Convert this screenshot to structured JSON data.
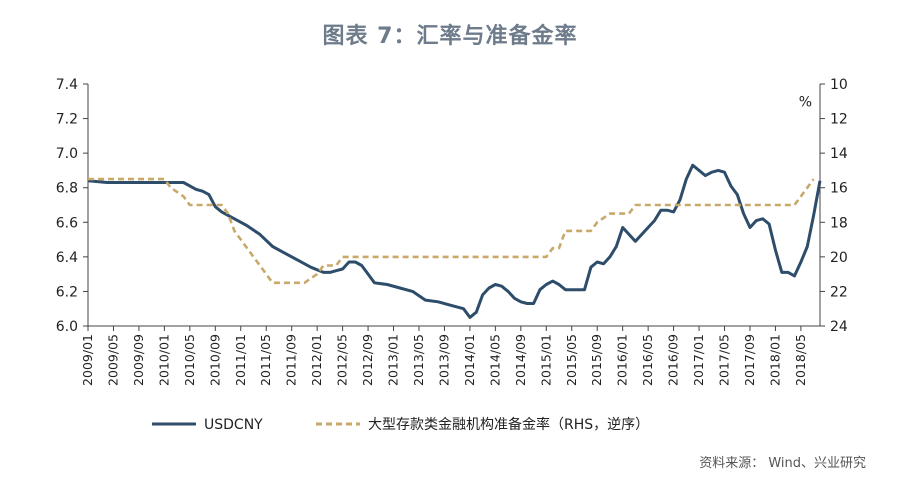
{
  "title": "图表 7：汇率与准备金率",
  "source": "资料来源： Wind、兴业研究",
  "colors": {
    "usdcny": "#2e4d6b",
    "rrr": "#c8a96a",
    "axis": "#444444",
    "text": "#222222"
  },
  "chart_data": {
    "type": "line",
    "xlabel": "",
    "ylabel": "",
    "ylim": [
      6.0,
      7.4
    ],
    "yticks": [
      "6.0",
      "6.2",
      "6.4",
      "6.6",
      "6.8",
      "7.0",
      "7.2",
      "7.4"
    ],
    "y2lim": [
      10,
      24
    ],
    "y2_inverted": true,
    "y2ticks": [
      "10",
      "12",
      "14",
      "16",
      "18",
      "20",
      "22",
      "24"
    ],
    "y2unit": "%",
    "x_range": [
      "2009-01",
      "2018-08"
    ],
    "x_tick_labels": [
      "2009/01",
      "2009/05",
      "2009/09",
      "2010/01",
      "2010/05",
      "2010/09",
      "2011/01",
      "2011/05",
      "2011/09",
      "2012/01",
      "2012/05",
      "2012/09",
      "2013/01",
      "2013/05",
      "2013/09",
      "2014/01",
      "2014/05",
      "2014/09",
      "2015/01",
      "2015/05",
      "2015/09",
      "2016/01",
      "2016/05",
      "2016/09",
      "2017/01",
      "2017/05",
      "2017/09",
      "2018/01",
      "2018/05"
    ],
    "legend_position": "bottom",
    "grid": false,
    "series": [
      {
        "name": "USDCNY",
        "axis": "left",
        "style": "solid",
        "x": [
          "2009-01",
          "2009-04",
          "2009-07",
          "2009-10",
          "2010-01",
          "2010-04",
          "2010-06",
          "2010-07",
          "2010-08",
          "2010-09",
          "2010-10",
          "2010-12",
          "2011-02",
          "2011-04",
          "2011-06",
          "2011-08",
          "2011-10",
          "2011-12",
          "2012-02",
          "2012-03",
          "2012-04",
          "2012-05",
          "2012-06",
          "2012-07",
          "2012-08",
          "2012-09",
          "2012-10",
          "2012-12",
          "2013-02",
          "2013-04",
          "2013-06",
          "2013-08",
          "2013-10",
          "2013-12",
          "2014-01",
          "2014-02",
          "2014-03",
          "2014-04",
          "2014-05",
          "2014-06",
          "2014-07",
          "2014-08",
          "2014-09",
          "2014-10",
          "2014-11",
          "2014-12",
          "2015-01",
          "2015-02",
          "2015-03",
          "2015-04",
          "2015-05",
          "2015-06",
          "2015-07",
          "2015-08",
          "2015-09",
          "2015-10",
          "2015-11",
          "2015-12",
          "2016-01",
          "2016-03",
          "2016-05",
          "2016-06",
          "2016-07",
          "2016-08",
          "2016-09",
          "2016-10",
          "2016-11",
          "2016-12",
          "2017-01",
          "2017-02",
          "2017-03",
          "2017-04",
          "2017-05",
          "2017-06",
          "2017-07",
          "2017-08",
          "2017-09",
          "2017-10",
          "2017-11",
          "2017-12",
          "2018-01",
          "2018-02",
          "2018-03",
          "2018-04",
          "2018-05",
          "2018-06",
          "2018-07",
          "2018-08"
        ],
        "values": [
          6.84,
          6.83,
          6.83,
          6.83,
          6.83,
          6.83,
          6.79,
          6.78,
          6.76,
          6.69,
          6.66,
          6.62,
          6.58,
          6.53,
          6.46,
          6.42,
          6.38,
          6.34,
          6.31,
          6.31,
          6.32,
          6.33,
          6.37,
          6.37,
          6.35,
          6.3,
          6.25,
          6.24,
          6.22,
          6.2,
          6.15,
          6.14,
          6.12,
          6.1,
          6.05,
          6.08,
          6.18,
          6.22,
          6.24,
          6.23,
          6.2,
          6.16,
          6.14,
          6.13,
          6.13,
          6.21,
          6.24,
          6.26,
          6.24,
          6.21,
          6.21,
          6.21,
          6.21,
          6.34,
          6.37,
          6.36,
          6.4,
          6.46,
          6.57,
          6.49,
          6.57,
          6.61,
          6.67,
          6.67,
          6.66,
          6.73,
          6.85,
          6.93,
          6.9,
          6.87,
          6.89,
          6.9,
          6.89,
          6.81,
          6.76,
          6.65,
          6.57,
          6.61,
          6.62,
          6.59,
          6.44,
          6.31,
          6.31,
          6.29,
          6.37,
          6.46,
          6.64,
          6.84
        ]
      },
      {
        "name": "大型存款类金融机构准备金率（RHS，逆序）",
        "axis": "right",
        "style": "dashed",
        "x": [
          "2009-01",
          "2010-01",
          "2010-02",
          "2010-04",
          "2010-05",
          "2010-10",
          "2010-11",
          "2010-12",
          "2011-01",
          "2011-02",
          "2011-03",
          "2011-04",
          "2011-05",
          "2011-06",
          "2011-11",
          "2012-01",
          "2012-02",
          "2012-04",
          "2012-05",
          "2015-01",
          "2015-02",
          "2015-03",
          "2015-04",
          "2015-08",
          "2015-09",
          "2015-11",
          "2016-02",
          "2016-03",
          "2018-04",
          "2018-06",
          "2018-07"
        ],
        "values": [
          15.5,
          15.5,
          16.0,
          16.5,
          17.0,
          17.0,
          17.5,
          18.5,
          19.0,
          19.5,
          20.0,
          20.5,
          21.0,
          21.5,
          21.5,
          21.0,
          20.5,
          20.5,
          20.0,
          20.0,
          19.5,
          19.5,
          18.5,
          18.5,
          18.0,
          17.5,
          17.5,
          17.0,
          17.0,
          16.0,
          15.5
        ]
      }
    ]
  }
}
